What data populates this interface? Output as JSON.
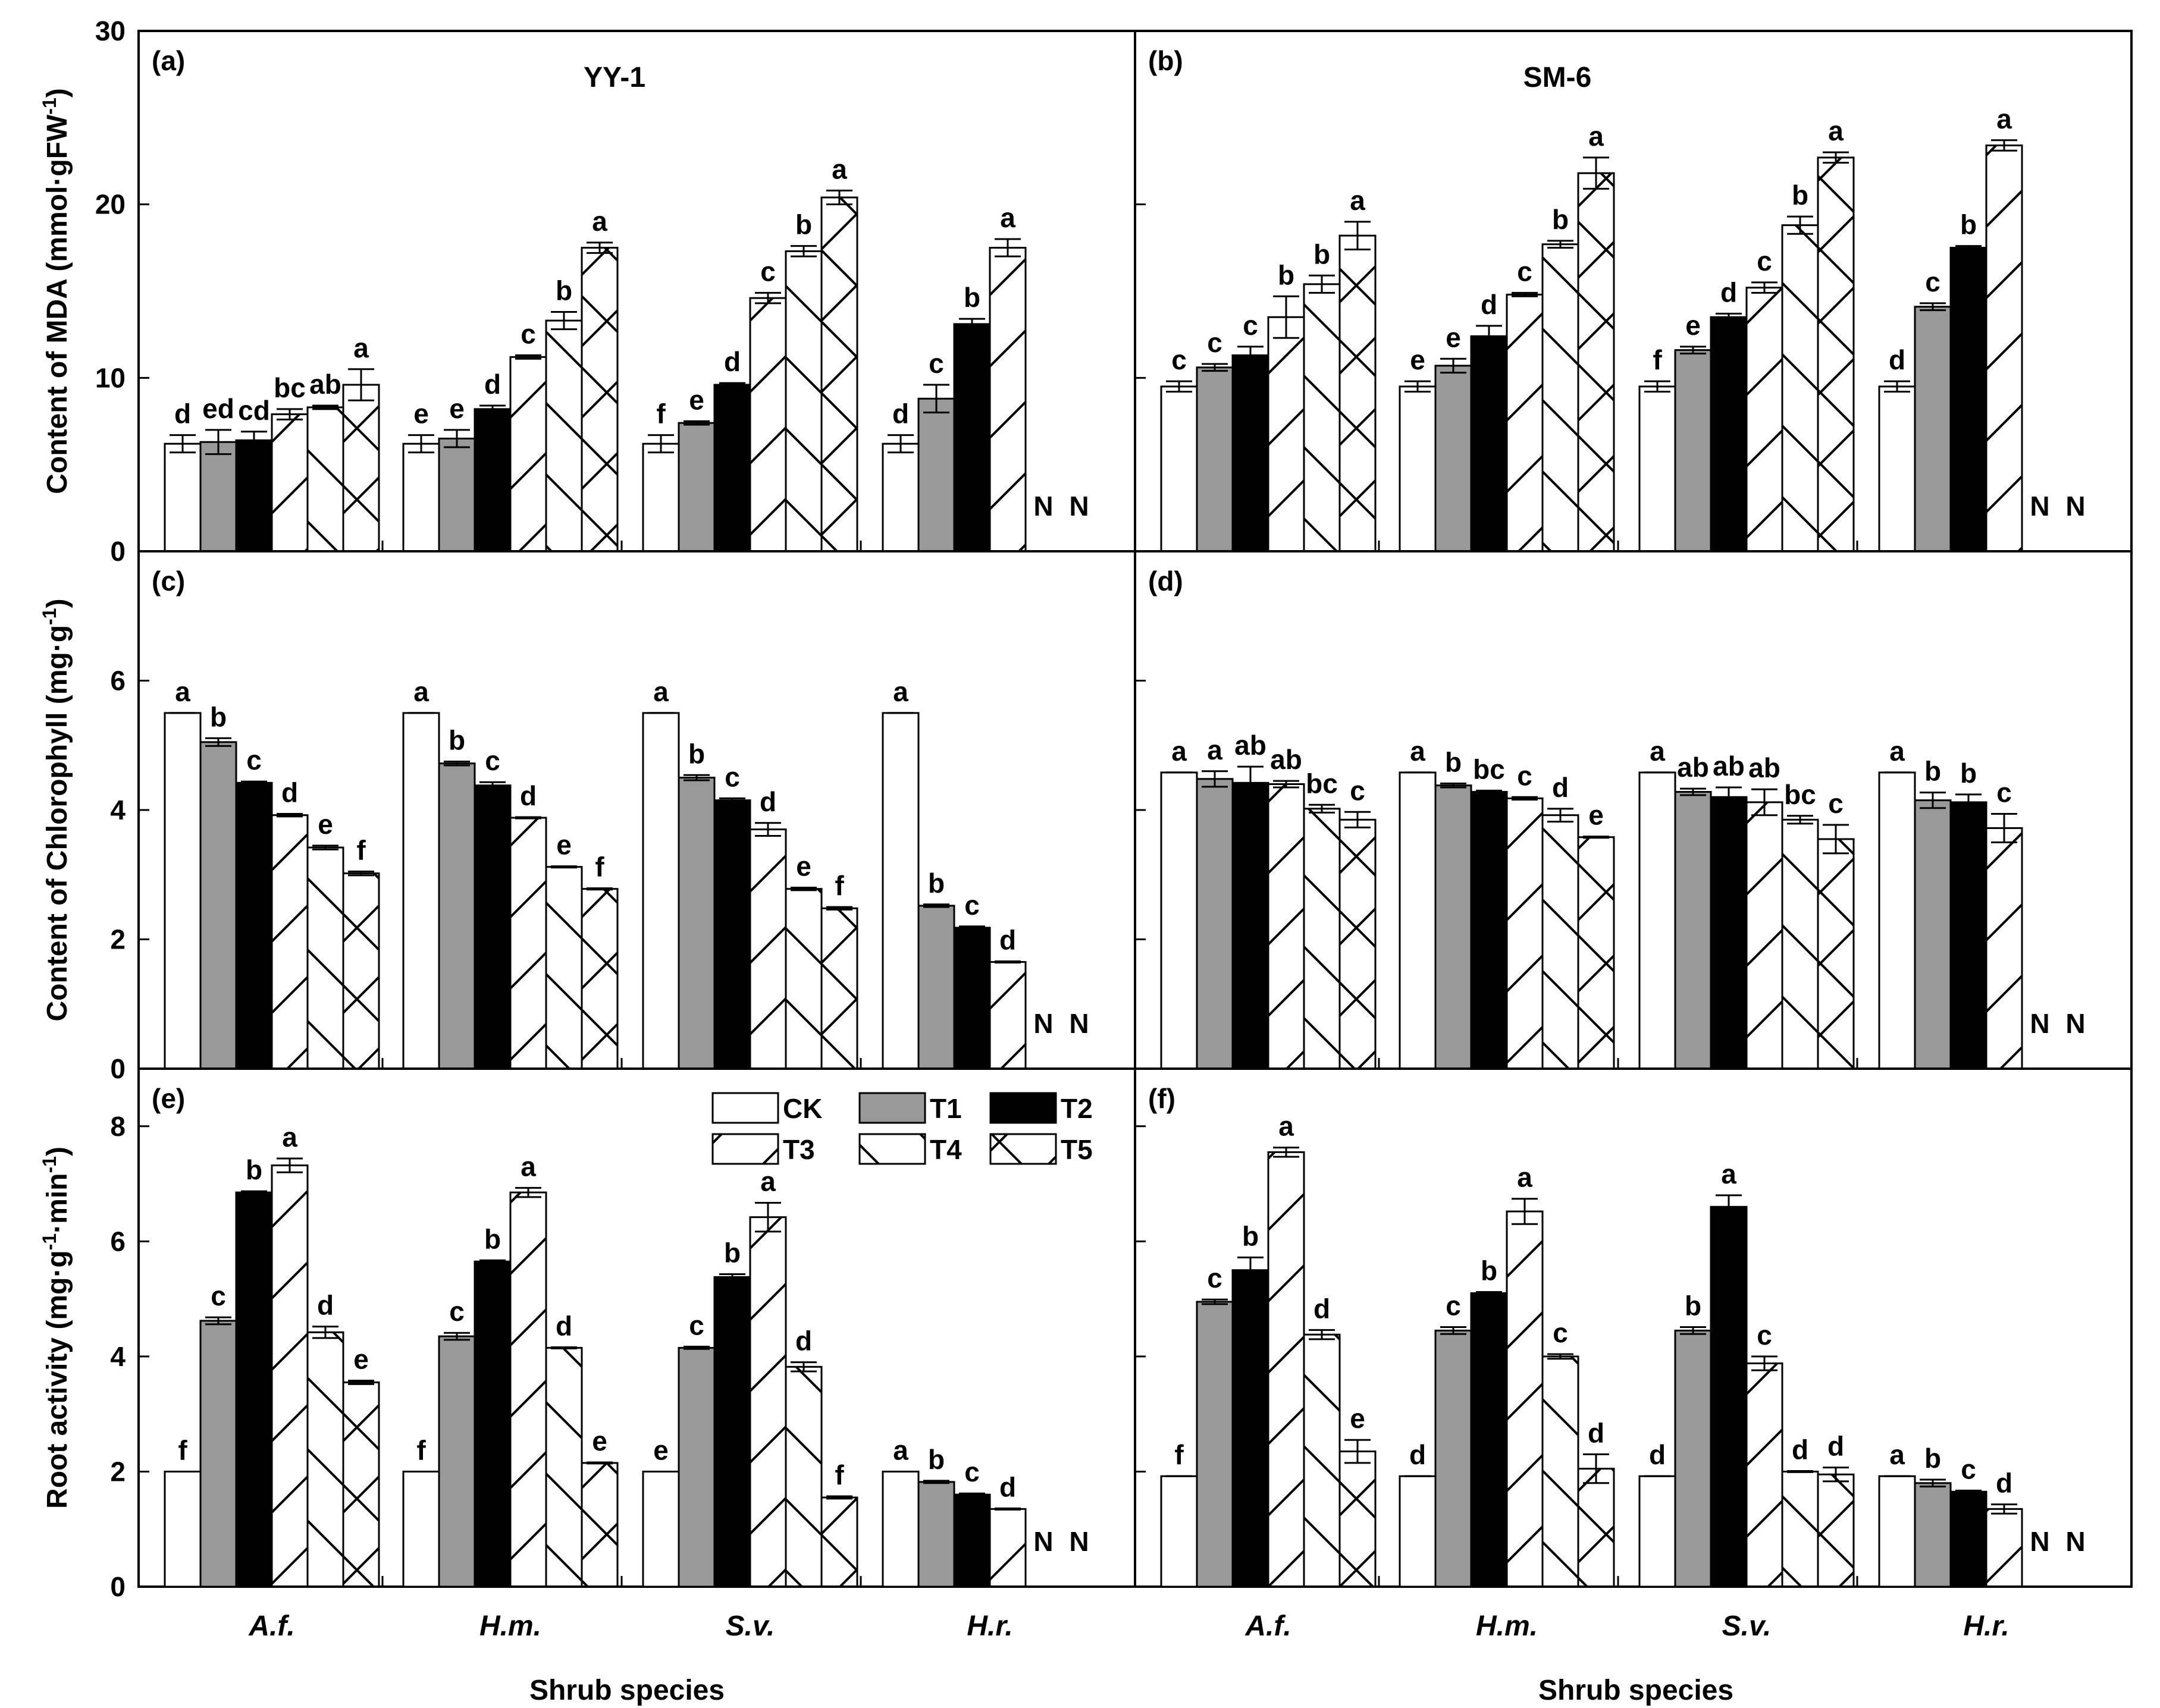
{
  "figure": {
    "x_title": "Shrub species",
    "legend": [
      {
        "key": "CK",
        "label": "CK"
      },
      {
        "key": "T1",
        "label": "T1"
      },
      {
        "key": "T2",
        "label": "T2"
      },
      {
        "key": "T3",
        "label": "T3"
      },
      {
        "key": "T4",
        "label": "T4"
      },
      {
        "key": "T5",
        "label": "T5"
      }
    ],
    "na_label": "N"
  },
  "chart_data": [
    {
      "panel": "(a)",
      "site": "YY-1",
      "type": "bar",
      "ylabel": "Content of MDA (mmol·gFW-1)",
      "ylim": [
        0,
        30
      ],
      "yticks": [
        "0",
        "10",
        "20",
        "30"
      ],
      "categories": [
        "A.f.",
        "H.m.",
        "S.v.",
        "H.r."
      ],
      "series": [
        {
          "name": "CK",
          "values": [
            6.2,
            6.2,
            6.2,
            6.2
          ],
          "errors": [
            0.5,
            0.5,
            0.5,
            0.5
          ],
          "letters": [
            "d",
            "e",
            "f",
            "d"
          ]
        },
        {
          "name": "T1",
          "values": [
            6.3,
            6.5,
            7.4,
            8.8
          ],
          "errors": [
            0.7,
            0.5,
            0.1,
            0.8
          ],
          "letters": [
            "ed",
            "e",
            "e",
            "c"
          ]
        },
        {
          "name": "T2",
          "values": [
            6.4,
            8.2,
            9.6,
            13.1
          ],
          "errors": [
            0.5,
            0.2,
            0.1,
            0.3
          ],
          "letters": [
            "cd",
            "d",
            "d",
            "b"
          ]
        },
        {
          "name": "T3",
          "values": [
            7.9,
            11.2,
            14.6,
            17.5
          ],
          "errors": [
            0.3,
            0.1,
            0.3,
            0.5
          ],
          "letters": [
            "bc",
            "c",
            "c",
            "a"
          ]
        },
        {
          "name": "T4",
          "values": [
            8.3,
            13.3,
            17.3,
            null
          ],
          "errors": [
            0.1,
            0.5,
            0.3,
            null
          ],
          "letters": [
            "ab",
            "b",
            "b",
            "N"
          ]
        },
        {
          "name": "T5",
          "values": [
            9.6,
            17.5,
            20.4,
            null
          ],
          "errors": [
            0.9,
            0.3,
            0.4,
            null
          ],
          "letters": [
            "a",
            "a",
            "a",
            "N"
          ]
        }
      ]
    },
    {
      "panel": "(b)",
      "site": "SM-6",
      "type": "bar",
      "ylabel": "",
      "ylim": [
        0,
        30
      ],
      "yticks": [
        "0",
        "10",
        "20",
        "30"
      ],
      "categories": [
        "A.f.",
        "H.m.",
        "S.v.",
        "H.r."
      ],
      "series": [
        {
          "name": "CK",
          "values": [
            9.5,
            9.5,
            9.5,
            9.5
          ],
          "errors": [
            0.3,
            0.3,
            0.3,
            0.3
          ],
          "letters": [
            "c",
            "e",
            "f",
            "d"
          ]
        },
        {
          "name": "T1",
          "values": [
            10.6,
            10.7,
            11.6,
            14.1
          ],
          "errors": [
            0.2,
            0.4,
            0.2,
            0.2
          ],
          "letters": [
            "c",
            "e",
            "e",
            "c"
          ]
        },
        {
          "name": "T2",
          "values": [
            11.3,
            12.4,
            13.5,
            17.5
          ],
          "errors": [
            0.5,
            0.6,
            0.2,
            0.1
          ],
          "letters": [
            "c",
            "d",
            "d",
            "b"
          ]
        },
        {
          "name": "T3",
          "values": [
            13.5,
            14.8,
            15.2,
            23.4
          ],
          "errors": [
            1.2,
            0.1,
            0.3,
            0.3
          ],
          "letters": [
            "b",
            "c",
            "c",
            "a"
          ]
        },
        {
          "name": "T4",
          "values": [
            15.4,
            17.7,
            18.8,
            null
          ],
          "errors": [
            0.5,
            0.2,
            0.5,
            null
          ],
          "letters": [
            "b",
            "b",
            "b",
            "N"
          ]
        },
        {
          "name": "T5",
          "values": [
            18.2,
            21.8,
            22.7,
            null
          ],
          "errors": [
            0.8,
            0.9,
            0.3,
            null
          ],
          "letters": [
            "a",
            "a",
            "a",
            "N"
          ]
        }
      ]
    },
    {
      "panel": "(c)",
      "type": "bar",
      "ylabel": "Content of Chlorophyll (mg·g-1)",
      "ylim": [
        0,
        8
      ],
      "yticks": [
        "0",
        "2",
        "4",
        "6"
      ],
      "categories": [
        "A.f.",
        "H.m.",
        "S.v.",
        "H.r."
      ],
      "series": [
        {
          "name": "CK",
          "values": [
            5.5,
            5.5,
            5.5,
            5.5
          ],
          "errors": [
            0.0,
            0.0,
            0.0,
            0.0
          ],
          "letters": [
            "a",
            "a",
            "a",
            "a"
          ]
        },
        {
          "name": "T1",
          "values": [
            5.05,
            4.72,
            4.5,
            2.52
          ],
          "errors": [
            0.06,
            0.03,
            0.04,
            0.02
          ],
          "letters": [
            "b",
            "b",
            "b",
            "b"
          ]
        },
        {
          "name": "T2",
          "values": [
            4.42,
            4.38,
            4.15,
            2.18
          ],
          "errors": [
            0.02,
            0.05,
            0.03,
            0.02
          ],
          "letters": [
            "c",
            "c",
            "c",
            "c"
          ]
        },
        {
          "name": "T3",
          "values": [
            3.92,
            3.88,
            3.7,
            1.65
          ],
          "errors": [
            0.02,
            0.01,
            0.1,
            0.01
          ],
          "letters": [
            "d",
            "d",
            "d",
            "d"
          ]
        },
        {
          "name": "T4",
          "values": [
            3.42,
            3.12,
            2.78,
            null
          ],
          "errors": [
            0.03,
            0.01,
            0.02,
            null
          ],
          "letters": [
            "e",
            "e",
            "e",
            "N"
          ]
        },
        {
          "name": "T5",
          "values": [
            3.02,
            2.78,
            2.48,
            null
          ],
          "errors": [
            0.03,
            0.01,
            0.02,
            null
          ],
          "letters": [
            "f",
            "f",
            "f",
            "N"
          ]
        }
      ]
    },
    {
      "panel": "(d)",
      "type": "bar",
      "ylabel": "",
      "ylim": [
        0,
        8
      ],
      "yticks": [
        "0",
        "2",
        "4",
        "6"
      ],
      "categories": [
        "A.f.",
        "H.m.",
        "S.v.",
        "H.r."
      ],
      "series": [
        {
          "name": "CK",
          "values": [
            4.58,
            4.58,
            4.58,
            4.58
          ],
          "errors": [
            0.0,
            0.0,
            0.0,
            0.0
          ],
          "letters": [
            "a",
            "a",
            "a",
            "a"
          ]
        },
        {
          "name": "T1",
          "values": [
            4.48,
            4.38,
            4.28,
            4.15
          ],
          "errors": [
            0.12,
            0.03,
            0.05,
            0.12
          ],
          "letters": [
            "a",
            "b",
            "ab",
            "b"
          ]
        },
        {
          "name": "T2",
          "values": [
            4.42,
            4.28,
            4.2,
            4.12
          ],
          "errors": [
            0.25,
            0.02,
            0.15,
            0.12
          ],
          "letters": [
            "ab",
            "bc",
            "ab",
            "b"
          ]
        },
        {
          "name": "T3",
          "values": [
            4.4,
            4.18,
            4.12,
            3.72
          ],
          "errors": [
            0.05,
            0.02,
            0.2,
            0.22
          ],
          "letters": [
            "ab",
            "c",
            "ab",
            "c"
          ]
        },
        {
          "name": "T4",
          "values": [
            4.02,
            3.92,
            3.85,
            null
          ],
          "errors": [
            0.06,
            0.1,
            0.06,
            null
          ],
          "letters": [
            "bc",
            "d",
            "bc",
            "N"
          ]
        },
        {
          "name": "T5",
          "values": [
            3.85,
            3.58,
            3.55,
            null
          ],
          "errors": [
            0.12,
            0.01,
            0.22,
            null
          ],
          "letters": [
            "c",
            "e",
            "c",
            "N"
          ]
        }
      ]
    },
    {
      "panel": "(e)",
      "type": "bar",
      "ylabel": "Root activity (mg·g-1·min-1)",
      "ylim": [
        0,
        9
      ],
      "yticks": [
        "0",
        "2",
        "4",
        "6",
        "8"
      ],
      "categories": [
        "A.f.",
        "H.m.",
        "S.v.",
        "H.r."
      ],
      "series": [
        {
          "name": "CK",
          "values": [
            2.0,
            2.0,
            2.0,
            2.0
          ],
          "errors": [
            0.0,
            0.0,
            0.0,
            0.0
          ],
          "letters": [
            "f",
            "f",
            "e",
            "a"
          ]
        },
        {
          "name": "T1",
          "values": [
            4.62,
            4.35,
            4.15,
            1.82
          ],
          "errors": [
            0.06,
            0.06,
            0.02,
            0.02
          ],
          "letters": [
            "c",
            "c",
            "c",
            "b"
          ]
        },
        {
          "name": "T2",
          "values": [
            6.85,
            5.65,
            5.38,
            1.6
          ],
          "errors": [
            0.02,
            0.02,
            0.05,
            0.02
          ],
          "letters": [
            "b",
            "b",
            "b",
            "c"
          ]
        },
        {
          "name": "T3",
          "values": [
            7.32,
            6.85,
            6.42,
            1.35
          ],
          "errors": [
            0.12,
            0.08,
            0.25,
            0.01
          ],
          "letters": [
            "a",
            "a",
            "a",
            "d"
          ]
        },
        {
          "name": "T4",
          "values": [
            4.42,
            4.15,
            3.82,
            null
          ],
          "errors": [
            0.1,
            0.01,
            0.08,
            null
          ],
          "letters": [
            "d",
            "d",
            "d",
            "N"
          ]
        },
        {
          "name": "T5",
          "values": [
            3.55,
            2.15,
            1.55,
            null
          ],
          "errors": [
            0.03,
            0.01,
            0.02,
            null
          ],
          "letters": [
            "e",
            "e",
            "f",
            "N"
          ]
        }
      ]
    },
    {
      "panel": "(f)",
      "type": "bar",
      "ylabel": "",
      "ylim": [
        0,
        9
      ],
      "yticks": [
        "0",
        "2",
        "4",
        "6",
        "8"
      ],
      "categories": [
        "A.f.",
        "H.m.",
        "S.v.",
        "H.r."
      ],
      "series": [
        {
          "name": "CK",
          "values": [
            1.92,
            1.92,
            1.92,
            1.92
          ],
          "errors": [
            0.0,
            0.0,
            0.0,
            0.0
          ],
          "letters": [
            "f",
            "d",
            "d",
            "a"
          ]
        },
        {
          "name": "T1",
          "values": [
            4.95,
            4.45,
            4.45,
            1.8
          ],
          "errors": [
            0.04,
            0.06,
            0.06,
            0.06
          ],
          "letters": [
            "c",
            "c",
            "b",
            "b"
          ]
        },
        {
          "name": "T2",
          "values": [
            5.5,
            5.1,
            6.6,
            1.65
          ],
          "errors": [
            0.22,
            0.02,
            0.2,
            0.02
          ],
          "letters": [
            "b",
            "b",
            "a",
            "c"
          ]
        },
        {
          "name": "T3",
          "values": [
            7.55,
            6.52,
            3.88,
            1.35
          ],
          "errors": [
            0.08,
            0.22,
            0.12,
            0.08
          ],
          "letters": [
            "a",
            "a",
            "c",
            "d"
          ]
        },
        {
          "name": "T4",
          "values": [
            4.38,
            4.0,
            2.0,
            null
          ],
          "errors": [
            0.08,
            0.04,
            0.01,
            null
          ],
          "letters": [
            "d",
            "c",
            "d",
            "N"
          ]
        },
        {
          "name": "T5",
          "values": [
            2.35,
            2.05,
            1.95,
            null
          ],
          "errors": [
            0.2,
            0.25,
            0.12,
            null
          ],
          "letters": [
            "e",
            "d",
            "d",
            "N"
          ]
        }
      ]
    }
  ]
}
